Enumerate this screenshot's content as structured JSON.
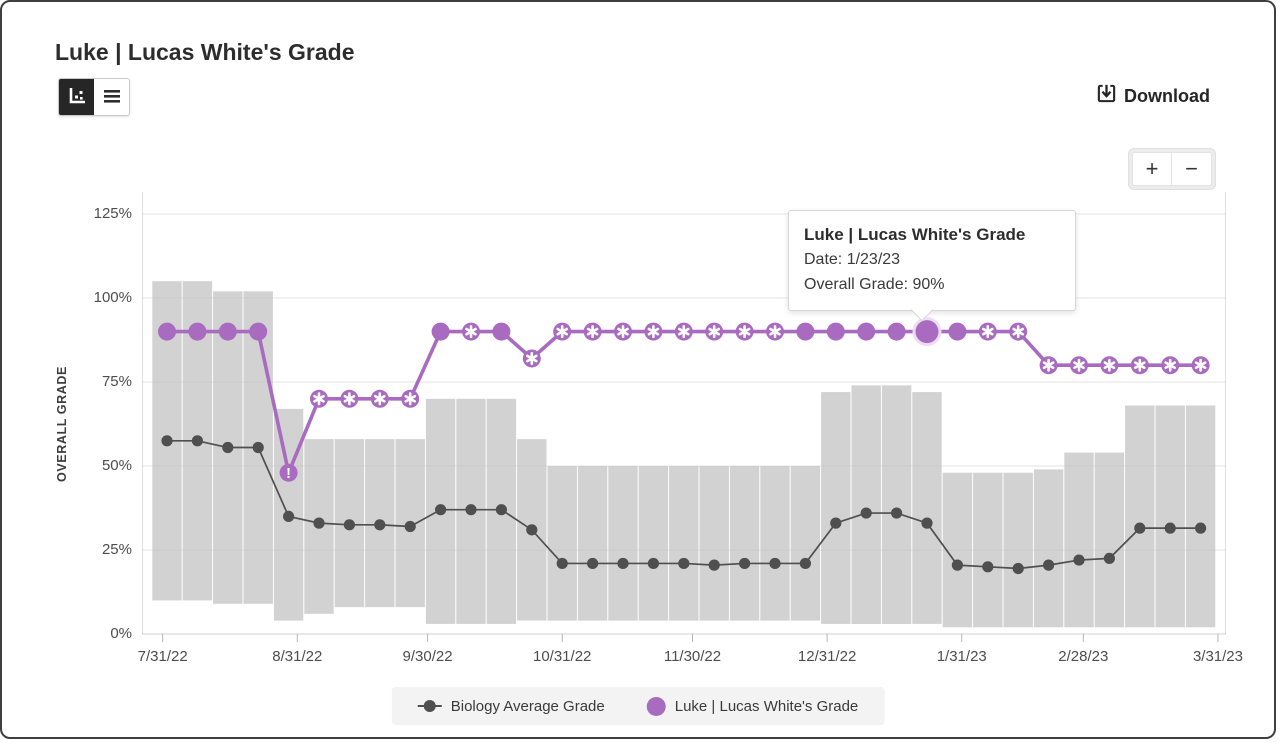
{
  "header": {
    "title": "Luke | Lucas White's Grade"
  },
  "toolbar": {
    "chart_view_label": "Chart view",
    "table_view_label": "Table view",
    "download_label": "Download"
  },
  "icons": [
    "bar-chart-icon",
    "list-icon",
    "download-icon",
    "plus-icon",
    "minus-icon"
  ],
  "zoom_controls": {
    "zoom_in": "+",
    "zoom_out": "−"
  },
  "tooltip": {
    "title": "Luke | Lucas White's Grade",
    "date": "Date: 1/23/23",
    "grade": "Overall Grade: 90%"
  },
  "legend": {
    "items": [
      {
        "label": "Biology Average Grade",
        "marker": "gray-dot-with-line",
        "color": "#4f4f4f"
      },
      {
        "label": "Luke | Lucas White's Grade",
        "marker": "purple-dot",
        "color": "#a96bc0"
      }
    ]
  },
  "colors": {
    "luke_line": "#a96bc0",
    "luke_highlight_halo": "#eedcf3",
    "biology_line": "#4f4f4f",
    "range_band": "#d2d2d2",
    "gridline": "#c2c2c2",
    "tick": "#b5b5b5",
    "text": "#3a3a3a"
  },
  "chart_data": {
    "type": "line",
    "title": "Luke | Lucas White's Grade",
    "ylabel": "OVERALL GRADE",
    "ylim": [
      0,
      125
    ],
    "grid": true,
    "legend_position": "bottom",
    "y_ticks": [
      {
        "label": "0%",
        "value": 0
      },
      {
        "label": "25%",
        "value": 25
      },
      {
        "label": "50%",
        "value": 50
      },
      {
        "label": "75%",
        "value": 75
      },
      {
        "label": "100%",
        "value": 100
      },
      {
        "label": "125%",
        "value": 125
      }
    ],
    "x_ticks": [
      {
        "label": "7/31/22",
        "day": 0
      },
      {
        "label": "8/31/22",
        "day": 31
      },
      {
        "label": "9/30/22",
        "day": 61
      },
      {
        "label": "10/31/22",
        "day": 92
      },
      {
        "label": "11/30/22",
        "day": 122
      },
      {
        "label": "12/31/22",
        "day": 153
      },
      {
        "label": "1/31/23",
        "day": 184
      },
      {
        "label": "2/28/23",
        "day": 212
      },
      {
        "label": "3/31/23",
        "day": 243
      }
    ],
    "dates": [
      "8/1/22",
      "8/8/22",
      "8/15/22",
      "8/22/22",
      "8/29/22",
      "9/5/22",
      "9/12/22",
      "9/19/22",
      "9/26/22",
      "10/3/22",
      "10/10/22",
      "10/17/22",
      "10/24/22",
      "10/31/22",
      "11/7/22",
      "11/14/22",
      "11/21/22",
      "11/28/22",
      "12/5/22",
      "12/12/22",
      "12/19/22",
      "12/26/22",
      "1/2/23",
      "1/9/23",
      "1/16/23",
      "1/23/23",
      "1/30/23",
      "2/6/23",
      "2/13/23",
      "2/20/23",
      "2/27/23",
      "3/6/23",
      "3/13/23",
      "3/20/23",
      "3/27/23"
    ],
    "series": [
      {
        "name": "Luke | Lucas White's Grade",
        "color": "#a96bc0",
        "values": [
          90,
          90,
          90,
          90,
          48,
          70,
          70,
          70,
          70,
          90,
          90,
          90,
          82,
          90,
          90,
          90,
          90,
          90,
          90,
          90,
          90,
          90,
          90,
          90,
          90,
          90,
          90,
          90,
          90,
          80,
          80,
          80,
          80,
          80,
          80
        ],
        "markers": [
          "dot",
          "dot",
          "dot",
          "dot",
          "exclaim",
          "asterisk",
          "asterisk",
          "asterisk",
          "asterisk",
          "dot",
          "asterisk",
          "dot",
          "asterisk",
          "asterisk",
          "asterisk",
          "asterisk",
          "asterisk",
          "asterisk",
          "asterisk",
          "asterisk",
          "asterisk",
          "dot",
          "dot",
          "dot",
          "dot",
          "highlight",
          "dot",
          "asterisk",
          "asterisk",
          "asterisk",
          "asterisk",
          "asterisk",
          "asterisk",
          "asterisk",
          "asterisk"
        ]
      },
      {
        "name": "Biology Average Grade",
        "color": "#4f4f4f",
        "values": [
          57.5,
          57.5,
          55.5,
          55.5,
          35,
          33,
          32.5,
          32.5,
          32,
          37,
          37,
          37,
          31,
          21,
          21,
          21,
          21,
          21,
          20.5,
          21,
          21,
          21,
          33,
          36,
          36,
          33,
          20.5,
          20,
          19.5,
          20.5,
          22,
          22.5,
          31.5,
          31.5,
          31.5
        ]
      }
    ],
    "range_band": {
      "name": "grade range band",
      "low": [
        10,
        10,
        9,
        9,
        4,
        6,
        8,
        8,
        8,
        3,
        3,
        3,
        4,
        4,
        4,
        4,
        4,
        4,
        4,
        4,
        4,
        4,
        3,
        3,
        3,
        3,
        2,
        2,
        2,
        2,
        2,
        2,
        2,
        2,
        2
      ],
      "high": [
        105,
        105,
        102,
        102,
        67,
        58,
        58,
        58,
        58,
        70,
        70,
        70,
        58,
        50,
        50,
        50,
        50,
        50,
        50,
        50,
        50,
        50,
        72,
        74,
        74,
        72,
        48,
        48,
        48,
        49,
        54,
        54,
        68,
        68,
        68
      ]
    },
    "highlight_index": 25,
    "highlight": {
      "date": "1/23/23",
      "value": 90
    }
  }
}
